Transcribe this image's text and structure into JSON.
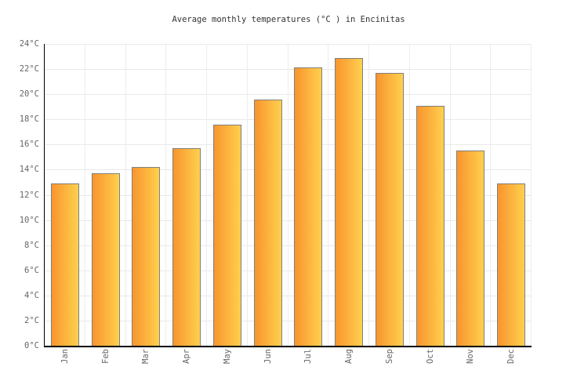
{
  "title": "Average monthly temperatures (°C ) in Encinitas",
  "chart_data": {
    "type": "bar",
    "title": "Average monthly temperatures (°C ) in Encinitas",
    "categories": [
      "Jan",
      "Feb",
      "Mar",
      "Apr",
      "May",
      "Jun",
      "Jul",
      "Aug",
      "Sep",
      "Oct",
      "Nov",
      "Dec"
    ],
    "values": [
      12.9,
      13.7,
      14.2,
      15.7,
      17.6,
      19.6,
      22.1,
      22.9,
      21.7,
      19.1,
      15.5,
      12.9
    ],
    "unit": "°C",
    "xlabel": "",
    "ylabel": "",
    "ylim": [
      0,
      24
    ],
    "ytick_step": 2,
    "ytick_values": [
      0,
      2,
      4,
      6,
      8,
      10,
      12,
      14,
      16,
      18,
      20,
      22,
      24
    ],
    "ytick_labels": [
      "0°C",
      "2°C",
      "4°C",
      "6°C",
      "8°C",
      "10°C",
      "12°C",
      "14°C",
      "16°C",
      "18°C",
      "20°C",
      "22°C",
      "24°C"
    ],
    "grid": true,
    "legend": false,
    "colors": {
      "bar_gradient_left": "#F8952E",
      "bar_gradient_right": "#FFD04E",
      "bar_border": "#7f7f7f",
      "grid_line": "#e9e9e9",
      "axis_line": "#000000",
      "tick_text": "#666666",
      "title_text": "#333333",
      "background": "#ffffff"
    }
  }
}
